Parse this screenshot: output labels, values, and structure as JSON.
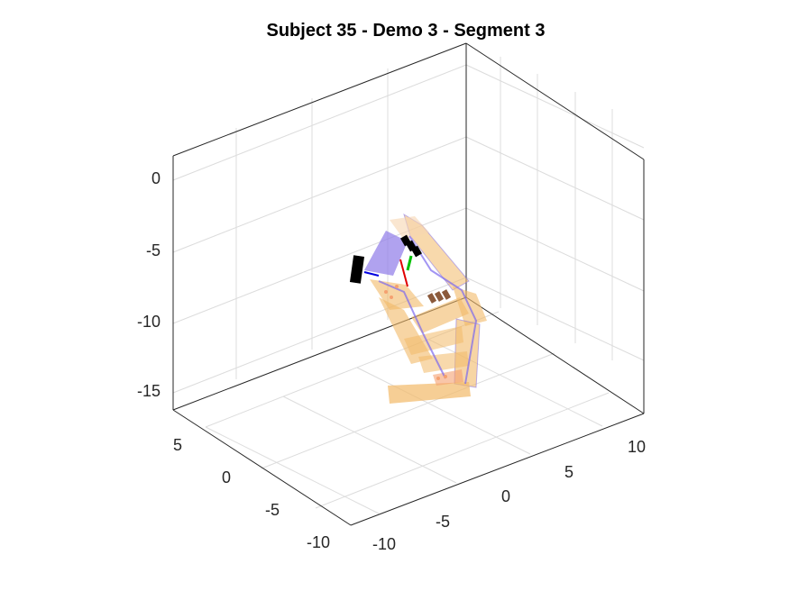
{
  "chart_data": {
    "type": "scatter",
    "title": "Subject 35 - Demo 3 - Segment 3",
    "xlabel": "",
    "ylabel": "",
    "zlabel": "",
    "x_ticks": [
      "-10",
      "-5",
      "0",
      "5",
      "10"
    ],
    "y_ticks": [
      "-10",
      "-5",
      "0",
      "5"
    ],
    "z_ticks": [
      "-15",
      "-10",
      "-5",
      "0"
    ],
    "xlim": [
      -11,
      11
    ],
    "ylim": [
      -11,
      7
    ],
    "zlim": [
      -16.5,
      1.5
    ],
    "grid": true,
    "view": "3d",
    "colors": {
      "limb_fill": "#f2b968",
      "limb_fill_light": "#f7d6b0",
      "joint_line": "#7b68ee",
      "hand_fill": "#8f7ae8",
      "marker_dark": "#000000",
      "marker_brown": "#8b5a3c",
      "axis_x": "#e00000",
      "axis_y": "#00c000",
      "axis_z": "#0000e0",
      "grid": "#dcdcdc",
      "box": "#262626"
    }
  }
}
